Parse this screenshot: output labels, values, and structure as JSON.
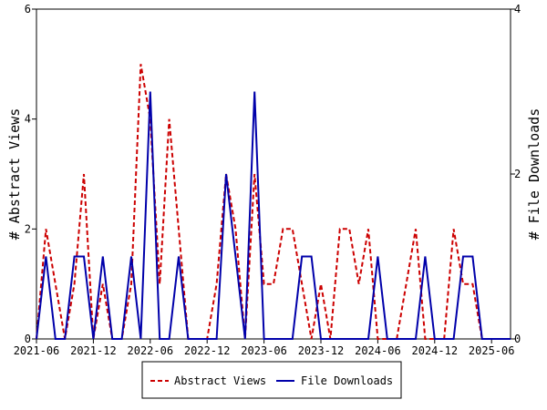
{
  "chart_data": {
    "type": "line",
    "x_ticks": [
      "2021-06",
      "2021-12",
      "2022-06",
      "2022-12",
      "2023-06",
      "2023-12",
      "2024-06",
      "2024-12",
      "2025-06"
    ],
    "y_left": {
      "label": "# Abstract Views",
      "ticks": [
        "0",
        "2",
        "4",
        "6"
      ],
      "range": [
        0,
        6
      ]
    },
    "y_right": {
      "label": "# File Downloads",
      "ticks": [
        "0",
        "2",
        "4"
      ],
      "range": [
        0,
        4
      ]
    },
    "x_range": [
      "2021-06",
      "2025-08"
    ],
    "grid": false,
    "legend_position": "bottom",
    "series": [
      {
        "name": "Abstract Views",
        "axis": "left",
        "color": "#cc0000",
        "style": "dashed",
        "points": [
          [
            "2021-06",
            0
          ],
          [
            "2021-07",
            2
          ],
          [
            "2021-08",
            1
          ],
          [
            "2021-09",
            0
          ],
          [
            "2021-10",
            1
          ],
          [
            "2021-11",
            3
          ],
          [
            "2021-12",
            0
          ],
          [
            "2022-01",
            1
          ],
          [
            "2022-02",
            0
          ],
          [
            "2022-03",
            0
          ],
          [
            "2022-04",
            1
          ],
          [
            "2022-05",
            5
          ],
          [
            "2022-06",
            4
          ],
          [
            "2022-07",
            1
          ],
          [
            "2022-08",
            4
          ],
          [
            "2022-09",
            2
          ],
          [
            "2022-10",
            0
          ],
          [
            "2022-11",
            0
          ],
          [
            "2022-12",
            0
          ],
          [
            "2023-01",
            1
          ],
          [
            "2023-02",
            3
          ],
          [
            "2023-03",
            2
          ],
          [
            "2023-04",
            0
          ],
          [
            "2023-05",
            3
          ],
          [
            "2023-06",
            1
          ],
          [
            "2023-07",
            1
          ],
          [
            "2023-08",
            2
          ],
          [
            "2023-09",
            2
          ],
          [
            "2023-10",
            1
          ],
          [
            "2023-11",
            0
          ],
          [
            "2023-12",
            1
          ],
          [
            "2024-01",
            0
          ],
          [
            "2024-02",
            2
          ],
          [
            "2024-03",
            2
          ],
          [
            "2024-04",
            1
          ],
          [
            "2024-05",
            2
          ],
          [
            "2024-06",
            0
          ],
          [
            "2024-07",
            0
          ],
          [
            "2024-08",
            0
          ],
          [
            "2024-09",
            1
          ],
          [
            "2024-10",
            2
          ],
          [
            "2024-11",
            0
          ],
          [
            "2024-12",
            0
          ],
          [
            "2025-01",
            0
          ],
          [
            "2025-02",
            2
          ],
          [
            "2025-03",
            1
          ],
          [
            "2025-04",
            1
          ],
          [
            "2025-05",
            0
          ],
          [
            "2025-06",
            0
          ],
          [
            "2025-07",
            0
          ],
          [
            "2025-08",
            0
          ]
        ]
      },
      {
        "name": "File Downloads",
        "axis": "right",
        "color": "#0000aa",
        "style": "solid",
        "points": [
          [
            "2021-06",
            0
          ],
          [
            "2021-07",
            1
          ],
          [
            "2021-08",
            0
          ],
          [
            "2021-09",
            0
          ],
          [
            "2021-10",
            1
          ],
          [
            "2021-11",
            1
          ],
          [
            "2021-12",
            0
          ],
          [
            "2022-01",
            1
          ],
          [
            "2022-02",
            0
          ],
          [
            "2022-03",
            0
          ],
          [
            "2022-04",
            1
          ],
          [
            "2022-05",
            0
          ],
          [
            "2022-06",
            3
          ],
          [
            "2022-07",
            0
          ],
          [
            "2022-08",
            0
          ],
          [
            "2022-09",
            1
          ],
          [
            "2022-10",
            0
          ],
          [
            "2022-11",
            0
          ],
          [
            "2022-12",
            0
          ],
          [
            "2023-01",
            0
          ],
          [
            "2023-02",
            2
          ],
          [
            "2023-03",
            1
          ],
          [
            "2023-04",
            0
          ],
          [
            "2023-05",
            3
          ],
          [
            "2023-06",
            0
          ],
          [
            "2023-07",
            0
          ],
          [
            "2023-08",
            0
          ],
          [
            "2023-09",
            0
          ],
          [
            "2023-10",
            1
          ],
          [
            "2023-11",
            1
          ],
          [
            "2023-12",
            0
          ],
          [
            "2024-01",
            0
          ],
          [
            "2024-02",
            0
          ],
          [
            "2024-03",
            0
          ],
          [
            "2024-04",
            0
          ],
          [
            "2024-05",
            0
          ],
          [
            "2024-06",
            1
          ],
          [
            "2024-07",
            0
          ],
          [
            "2024-08",
            0
          ],
          [
            "2024-09",
            0
          ],
          [
            "2024-10",
            0
          ],
          [
            "2024-11",
            1
          ],
          [
            "2024-12",
            0
          ],
          [
            "2025-01",
            0
          ],
          [
            "2025-02",
            0
          ],
          [
            "2025-03",
            1
          ],
          [
            "2025-04",
            1
          ],
          [
            "2025-05",
            0
          ],
          [
            "2025-06",
            0
          ],
          [
            "2025-07",
            0
          ],
          [
            "2025-08",
            0
          ]
        ]
      }
    ]
  }
}
